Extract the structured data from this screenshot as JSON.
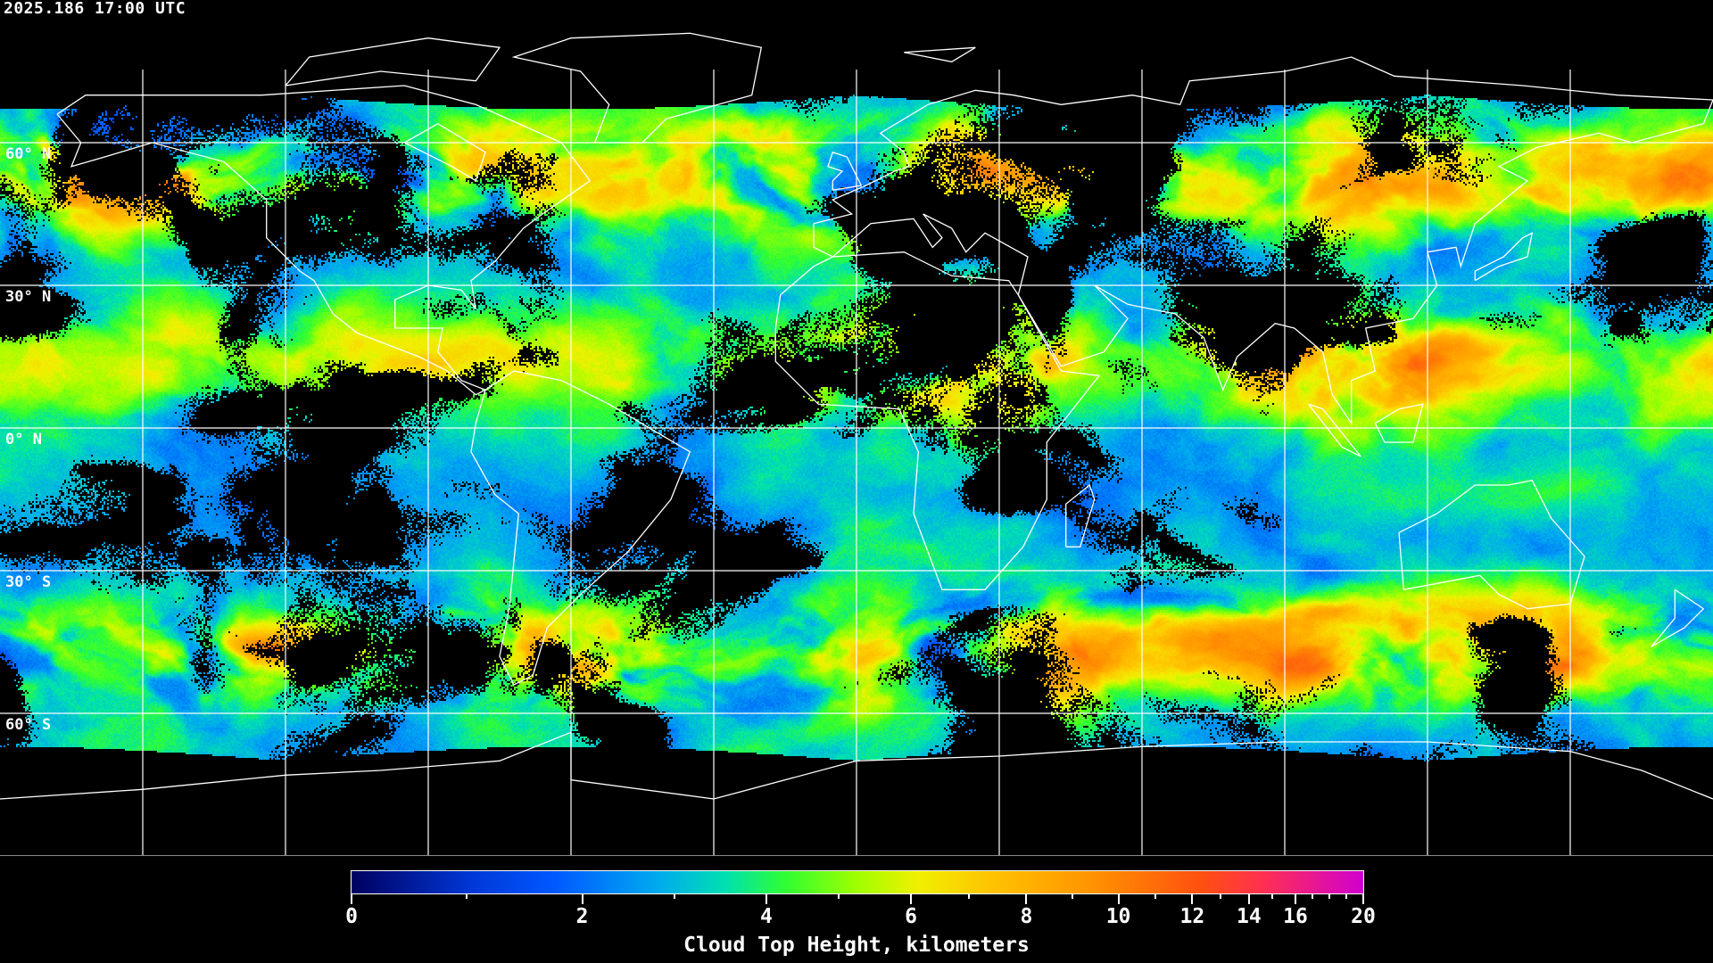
{
  "header": {
    "timestamp": "2025.186 17:00 UTC"
  },
  "map": {
    "projection": "equirectangular",
    "lon_range": [
      -180,
      180
    ],
    "lat_range": [
      -90,
      90
    ],
    "grid_spacing_deg": 30,
    "data_lat_extent": [
      -70,
      70
    ],
    "lat_labels": [
      {
        "lat": 60,
        "text": "60° N"
      },
      {
        "lat": 30,
        "text": "30° N"
      },
      {
        "lat": 0,
        "text": "0° N"
      },
      {
        "lat": -30,
        "text": "30° S"
      },
      {
        "lat": -60,
        "text": "60° S"
      }
    ],
    "gridline_color": "#ffffff",
    "coastline_color": "#ffffff",
    "clear_sky_color": "#000000"
  },
  "colorbar": {
    "title": "Cloud Top Height, kilometers",
    "range": [
      0,
      20
    ],
    "major_ticks": [
      {
        "value": 0,
        "label": "0",
        "pos": 0.0
      },
      {
        "value": 2,
        "label": "2",
        "pos": 0.228
      },
      {
        "value": 4,
        "label": "4",
        "pos": 0.41
      },
      {
        "value": 6,
        "label": "6",
        "pos": 0.553
      },
      {
        "value": 8,
        "label": "8",
        "pos": 0.667
      },
      {
        "value": 10,
        "label": "10",
        "pos": 0.758
      },
      {
        "value": 12,
        "label": "12",
        "pos": 0.831
      },
      {
        "value": 14,
        "label": "14",
        "pos": 0.887
      },
      {
        "value": 16,
        "label": "16",
        "pos": 0.933
      },
      {
        "value": 20,
        "label": "20",
        "pos": 1.0
      }
    ],
    "minor_ticks": [
      1,
      3,
      5,
      7,
      9,
      11,
      13,
      15,
      17,
      18,
      19
    ],
    "colormap": [
      {
        "pos": 0.0,
        "color": "#000060"
      },
      {
        "pos": 0.12,
        "color": "#0038d8"
      },
      {
        "pos": 0.2,
        "color": "#0058ff"
      },
      {
        "pos": 0.3,
        "color": "#00a8f0"
      },
      {
        "pos": 0.37,
        "color": "#00e0b0"
      },
      {
        "pos": 0.43,
        "color": "#30ff30"
      },
      {
        "pos": 0.5,
        "color": "#a0ff00"
      },
      {
        "pos": 0.56,
        "color": "#f0f000"
      },
      {
        "pos": 0.63,
        "color": "#ffc400"
      },
      {
        "pos": 0.73,
        "color": "#ff9400"
      },
      {
        "pos": 0.84,
        "color": "#ff5010"
      },
      {
        "pos": 0.9,
        "color": "#ff3050"
      },
      {
        "pos": 1.0,
        "color": "#d000d0"
      }
    ]
  }
}
